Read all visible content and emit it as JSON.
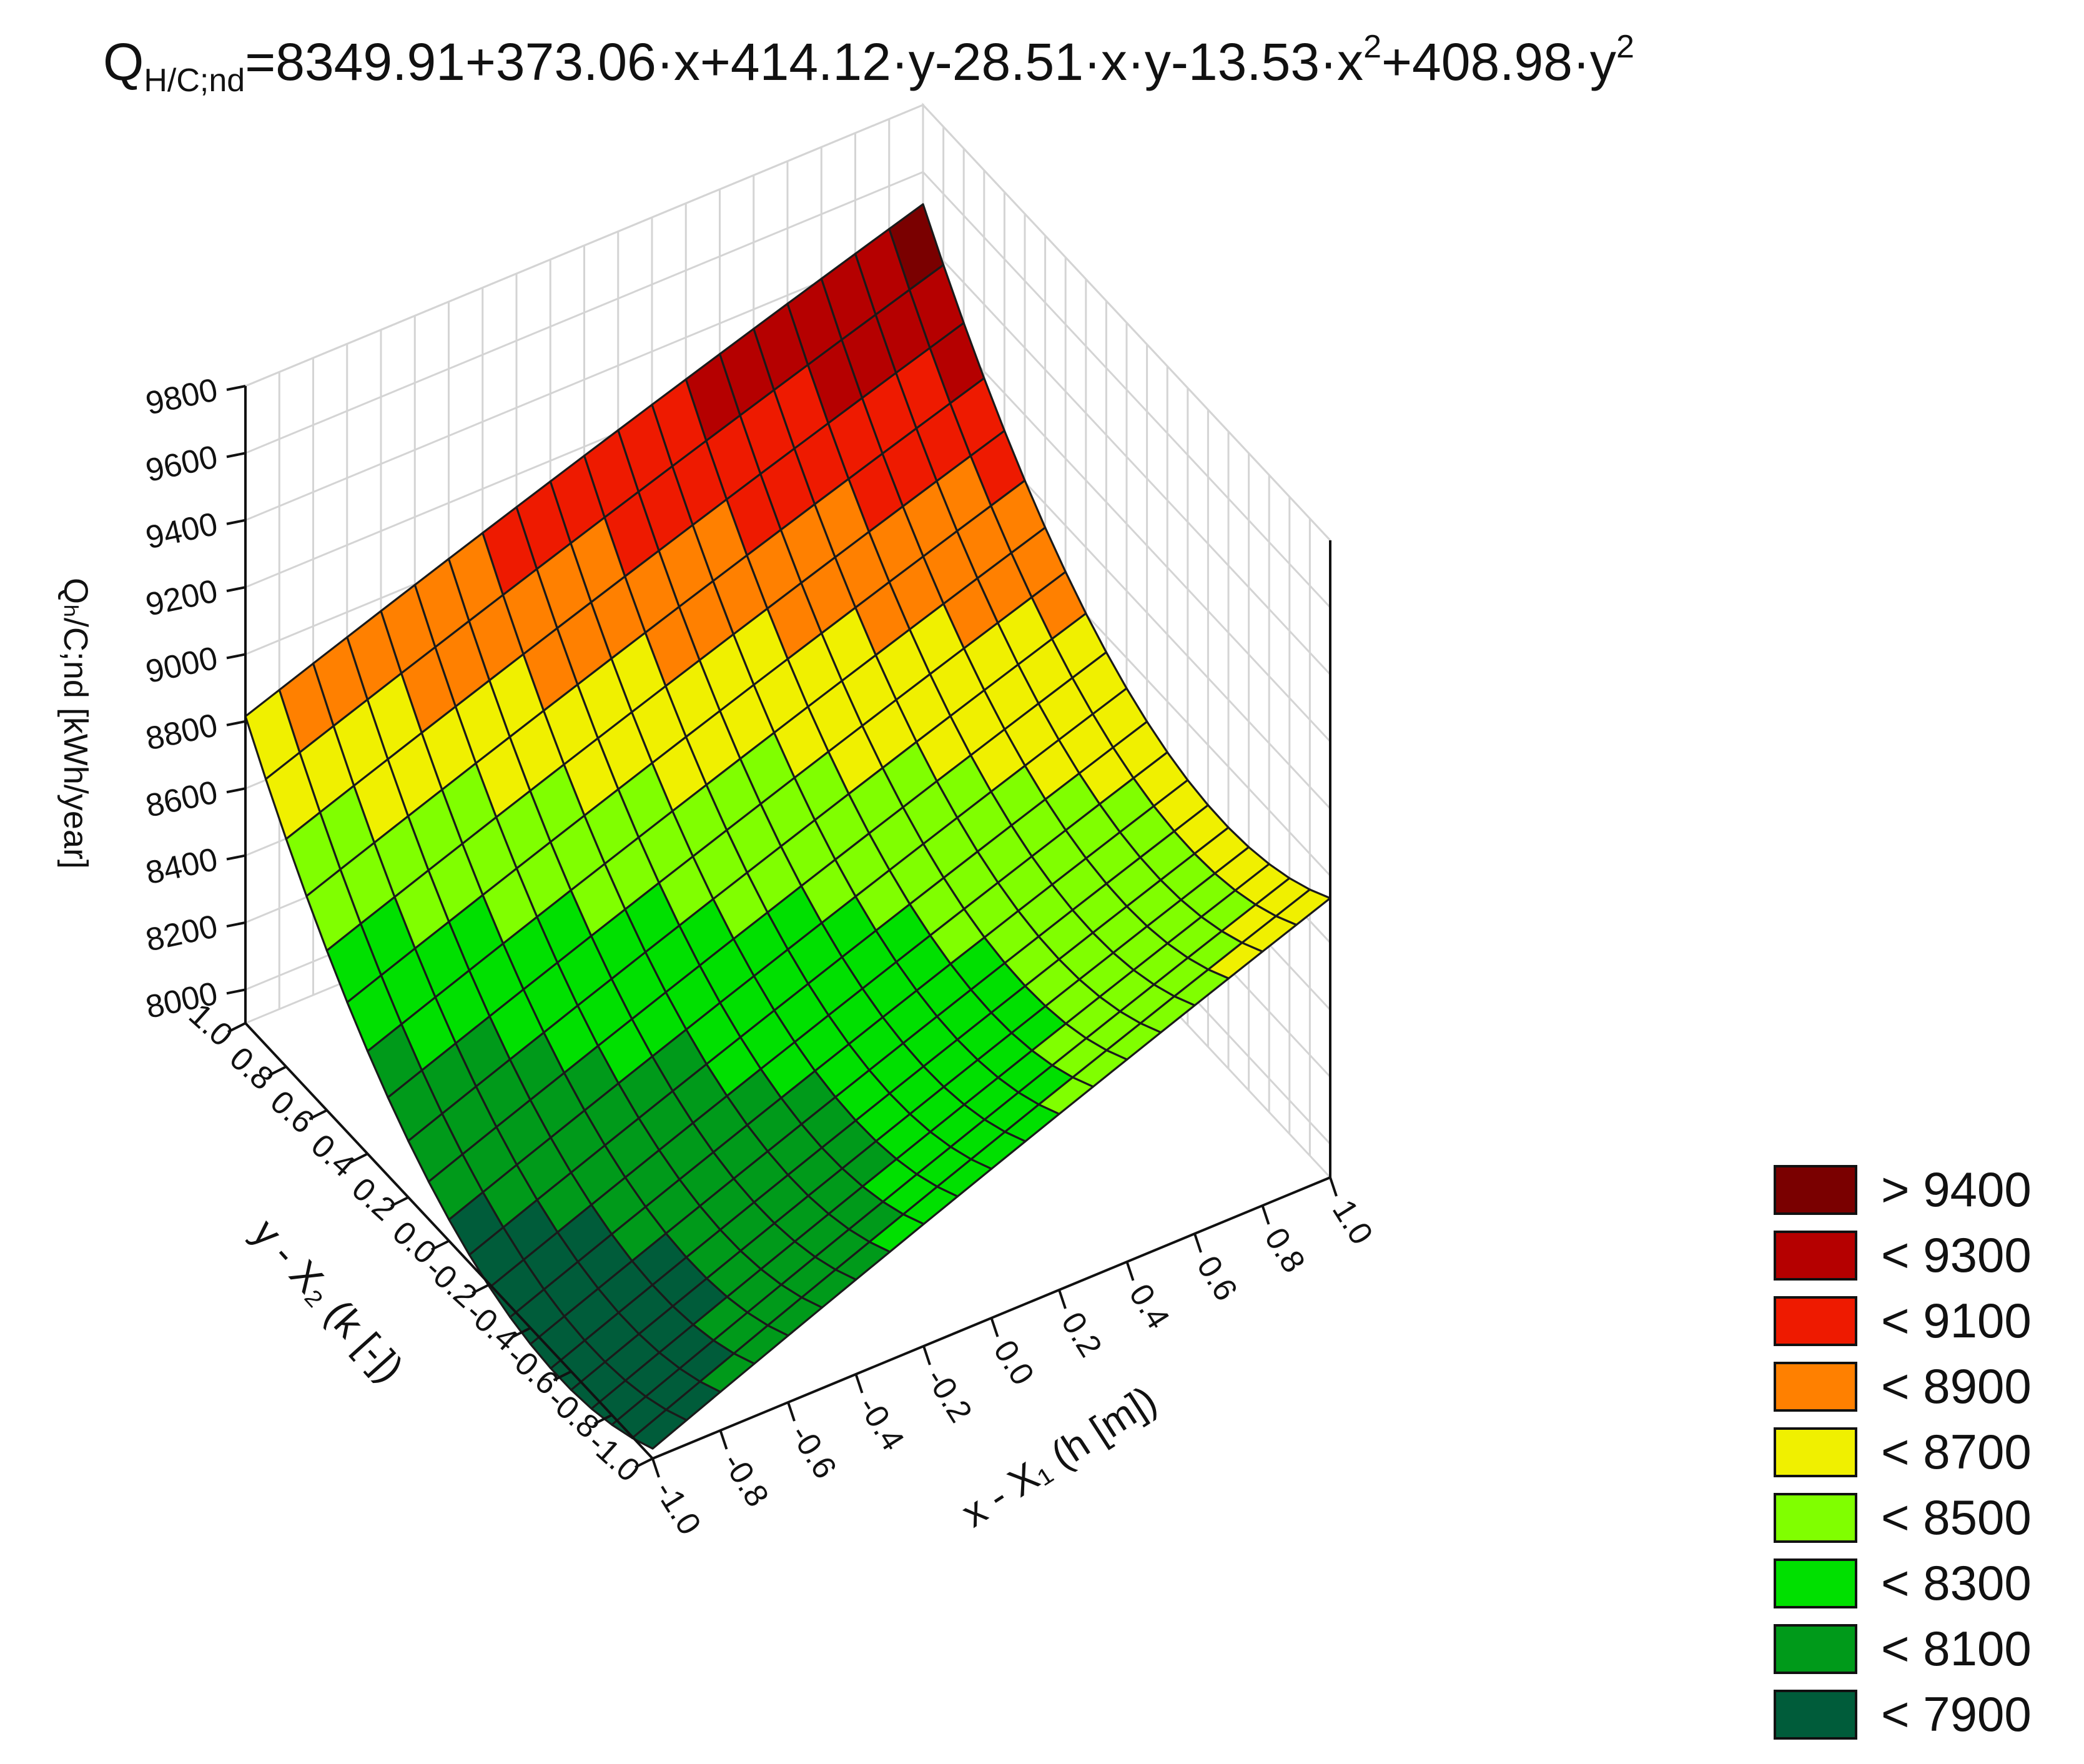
{
  "title": {
    "q": "Q",
    "q_sub": "H/C;nd",
    "part1": "=8349.91+373.06·x+414.12·y-28.51·x·y-13.53·x",
    "sup1": "2",
    "part2": "+408.98·y",
    "sup2": "2"
  },
  "chart_data": {
    "type": "surface3d",
    "coefficients": {
      "intercept": 8349.91,
      "x": 373.06,
      "y": 414.12,
      "xy": -28.51,
      "xx": -13.53,
      "yy": 408.98
    },
    "xlabel": "x - X₁ (h [m])",
    "ylabel": "y - X₂ (k [-])",
    "zlabel": "Qₕ/C;nd [kWh/year]",
    "xlim": [
      -1.0,
      1.0
    ],
    "ylim": [
      -1.0,
      1.0
    ],
    "zlim": [
      7900,
      9800
    ],
    "x_ticks": [
      "-1.0",
      "-0.8",
      "-0.6",
      "-0.4",
      "-0.2",
      "0.0",
      "0.2",
      "0.4",
      "0.6",
      "0.8",
      "1.0"
    ],
    "y_ticks": [
      "1.0",
      "0.8",
      "0.6",
      "0.4",
      "0.2",
      "0.0",
      "-0.2",
      "-0.4",
      "-0.6",
      "-0.8",
      "-1.0"
    ],
    "z_ticks": [
      "8000",
      "8200",
      "8400",
      "8600",
      "8800",
      "9000",
      "9200",
      "9400",
      "9600",
      "9800"
    ],
    "grid_steps": 20,
    "grid": true,
    "legend_position": "bottom-right",
    "levels": [
      {
        "label": "> 9400",
        "color": "#7a0000",
        "lo": 9400,
        "hi": 99999
      },
      {
        "label": "< 9300",
        "color": "#b50000",
        "lo": 9200,
        "hi": 9400
      },
      {
        "label": "< 9100",
        "color": "#ee1a00",
        "lo": 9000,
        "hi": 9200
      },
      {
        "label": "< 8900",
        "color": "#ff8000",
        "lo": 8800,
        "hi": 9000
      },
      {
        "label": "< 8700",
        "color": "#f0f000",
        "lo": 8600,
        "hi": 8800
      },
      {
        "label": "< 8500",
        "color": "#80ff00",
        "lo": 8400,
        "hi": 8600
      },
      {
        "label": "< 8300",
        "color": "#00e000",
        "lo": 8200,
        "hi": 8400
      },
      {
        "label": "< 8100",
        "color": "#009a1a",
        "lo": 8000,
        "hi": 8200
      },
      {
        "label": "< 7900",
        "color": "#005c3a",
        "lo": -99999,
        "hi": 8000
      }
    ]
  }
}
